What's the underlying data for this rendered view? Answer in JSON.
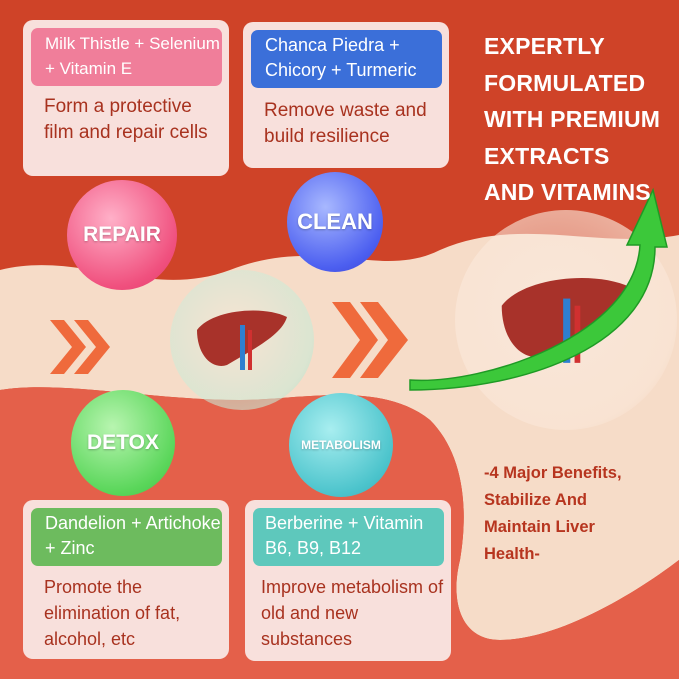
{
  "colors": {
    "background": "#cf4328",
    "wave": "#f6dcc8",
    "lower": "#e4604a",
    "text_dark": "#a8321f",
    "repair": "#f07e9a",
    "clean": "#3b6fd9",
    "detox": "#6dbb5e",
    "metabolism": "#5ec8bc",
    "arrow": "#3cc83a"
  },
  "cards": [
    {
      "header": "Milk Thistle + Selenium + Vitamin E",
      "body": "Form a protective film and repair cells"
    },
    {
      "header": "Chanca Piedra + Chicory + Turmeric",
      "body": "Remove waste and build resilience"
    },
    {
      "header": "Dandelion + Artichoke + Zinc",
      "body": "Promote the elimination of fat, alcohol, etc"
    },
    {
      "header": "Berberine + Vitamin B6, B9, B12",
      "body": "Improve metabolism of old and new substances"
    }
  ],
  "spheres": {
    "repair": "REPAIR",
    "clean": "CLEAN",
    "detox": "DETOX",
    "metabolism": "METABOLISM"
  },
  "icons": [
    "liver-icon",
    "chevron-right-icon",
    "curved-arrow-icon"
  ],
  "headline": "EXPERTLY FORMULATED WITH PREMIUM EXTRACTS AND VITAMINS",
  "tagline": "-4 Major Benefits, Stabilize And Maintain Liver Health-"
}
